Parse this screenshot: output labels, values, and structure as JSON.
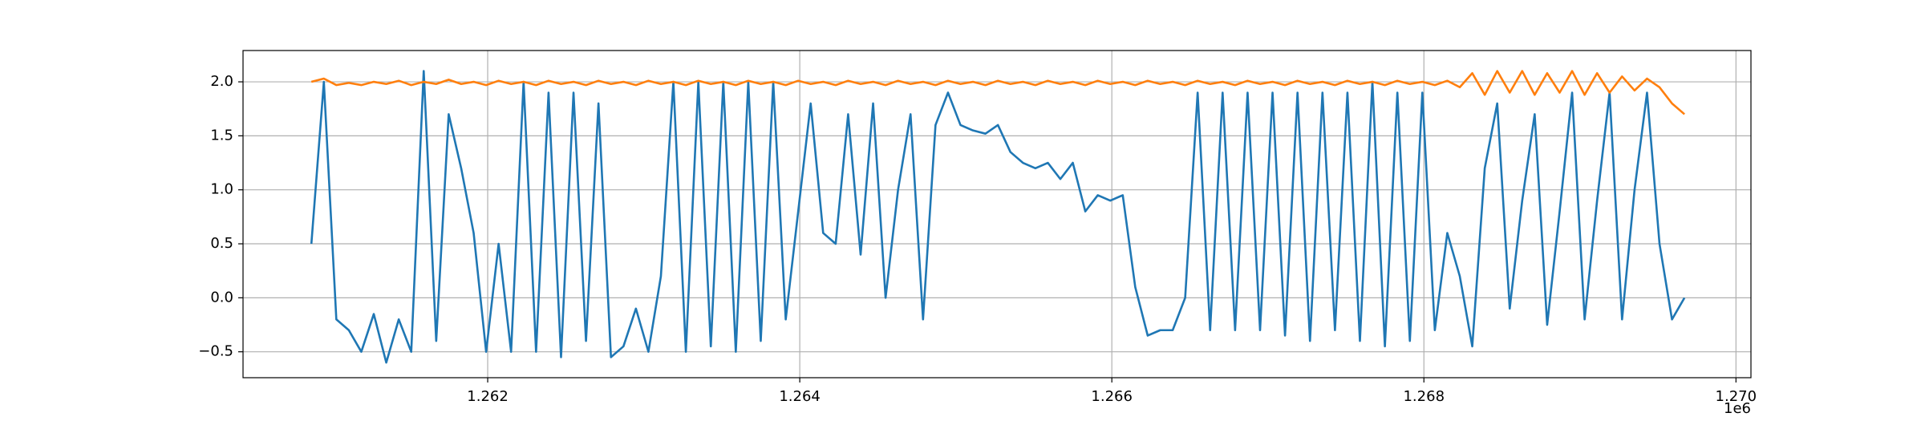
{
  "chart_data": {
    "type": "line",
    "x": [
      1260870,
      1260950,
      1261030,
      1261110,
      1261190,
      1261270,
      1261350,
      1261430,
      1261510,
      1261590,
      1261670,
      1261750,
      1261830,
      1261910,
      1261990,
      1262070,
      1262150,
      1262230,
      1262310,
      1262390,
      1262470,
      1262550,
      1262630,
      1262710,
      1262790,
      1262870,
      1262950,
      1263030,
      1263110,
      1263190,
      1263270,
      1263350,
      1263430,
      1263510,
      1263590,
      1263670,
      1263750,
      1263830,
      1263910,
      1263990,
      1264070,
      1264150,
      1264230,
      1264310,
      1264390,
      1264470,
      1264550,
      1264630,
      1264710,
      1264790,
      1264870,
      1264950,
      1265030,
      1265110,
      1265190,
      1265270,
      1265350,
      1265430,
      1265510,
      1265590,
      1265670,
      1265750,
      1265830,
      1265910,
      1265990,
      1266070,
      1266150,
      1266230,
      1266310,
      1266390,
      1266470,
      1266550,
      1266630,
      1266710,
      1266790,
      1266870,
      1266950,
      1267030,
      1267110,
      1267190,
      1267270,
      1267350,
      1267430,
      1267510,
      1267590,
      1267670,
      1267750,
      1267830,
      1267910,
      1267990,
      1268070,
      1268150,
      1268230,
      1268310,
      1268390,
      1268470,
      1268550,
      1268630,
      1268710,
      1268790,
      1268870,
      1268950,
      1269030,
      1269110,
      1269190,
      1269270,
      1269350,
      1269430,
      1269510,
      1269590,
      1269670
    ],
    "series": [
      {
        "color": "#1f77b4",
        "values": [
          0.5,
          2.0,
          -0.2,
          -0.3,
          -0.5,
          -0.15,
          -0.6,
          -0.2,
          -0.5,
          2.1,
          -0.4,
          1.7,
          1.2,
          0.6,
          -0.5,
          0.5,
          -0.5,
          2.0,
          -0.5,
          1.9,
          -0.55,
          1.9,
          -0.4,
          1.8,
          -0.55,
          -0.45,
          -0.1,
          -0.5,
          0.2,
          2.0,
          -0.5,
          2.0,
          -0.45,
          2.0,
          -0.5,
          2.0,
          -0.4,
          2.0,
          -0.2,
          0.8,
          1.8,
          0.6,
          0.5,
          1.7,
          0.4,
          1.8,
          0.0,
          1.0,
          1.7,
          -0.2,
          1.6,
          1.9,
          1.6,
          1.55,
          1.52,
          1.6,
          1.35,
          1.25,
          1.2,
          1.25,
          1.1,
          1.25,
          0.8,
          0.95,
          0.9,
          0.95,
          0.1,
          -0.35,
          -0.3,
          -0.3,
          0.0,
          1.9,
          -0.3,
          1.9,
          -0.3,
          1.9,
          -0.3,
          1.9,
          -0.35,
          1.9,
          -0.4,
          1.9,
          -0.3,
          1.9,
          -0.4,
          2.0,
          -0.45,
          1.9,
          -0.4,
          1.9,
          -0.3,
          0.6,
          0.2,
          -0.45,
          1.2,
          1.8,
          -0.1,
          0.9,
          1.7,
          -0.25,
          0.8,
          1.9,
          -0.2,
          0.9,
          1.9,
          -0.2,
          1.0,
          1.9,
          0.5,
          -0.2,
          0.0
        ]
      },
      {
        "color": "#ff7f0e",
        "values": [
          2.0,
          2.03,
          1.97,
          1.99,
          1.97,
          2.0,
          1.98,
          2.01,
          1.97,
          2.0,
          1.98,
          2.02,
          1.98,
          2.0,
          1.97,
          2.01,
          1.98,
          2.0,
          1.97,
          2.01,
          1.98,
          2.0,
          1.97,
          2.01,
          1.98,
          2.0,
          1.97,
          2.01,
          1.98,
          2.0,
          1.97,
          2.01,
          1.98,
          2.0,
          1.97,
          2.01,
          1.98,
          2.0,
          1.97,
          2.01,
          1.98,
          2.0,
          1.97,
          2.01,
          1.98,
          2.0,
          1.97,
          2.01,
          1.98,
          2.0,
          1.97,
          2.01,
          1.98,
          2.0,
          1.97,
          2.01,
          1.98,
          2.0,
          1.97,
          2.01,
          1.98,
          2.0,
          1.97,
          2.01,
          1.98,
          2.0,
          1.97,
          2.01,
          1.98,
          2.0,
          1.97,
          2.01,
          1.98,
          2.0,
          1.97,
          2.01,
          1.98,
          2.0,
          1.97,
          2.01,
          1.98,
          2.0,
          1.97,
          2.01,
          1.98,
          2.0,
          1.97,
          2.01,
          1.98,
          2.0,
          1.97,
          2.01,
          1.95,
          2.08,
          1.88,
          2.1,
          1.9,
          2.1,
          1.88,
          2.08,
          1.9,
          2.1,
          1.88,
          2.08,
          1.9,
          2.05,
          1.92,
          2.03,
          1.95,
          1.8,
          1.7
        ]
      }
    ],
    "xlim": [
      1260432,
      1270096
    ],
    "ylim": [
      -0.74,
      2.29
    ],
    "xticks": [
      {
        "value": 1262000,
        "label": "1.262"
      },
      {
        "value": 1264000,
        "label": "1.264"
      },
      {
        "value": 1266000,
        "label": "1.266"
      },
      {
        "value": 1268000,
        "label": "1.268"
      },
      {
        "value": 1270000,
        "label": "1.270"
      }
    ],
    "yticks": [
      {
        "value": -0.5,
        "label": "−0.5"
      },
      {
        "value": 0.0,
        "label": "0.0"
      },
      {
        "value": 0.5,
        "label": "0.5"
      },
      {
        "value": 1.0,
        "label": "1.0"
      },
      {
        "value": 1.5,
        "label": "1.5"
      },
      {
        "value": 2.0,
        "label": "2.0"
      }
    ],
    "x_offset_label": "1e6",
    "grid": true
  }
}
